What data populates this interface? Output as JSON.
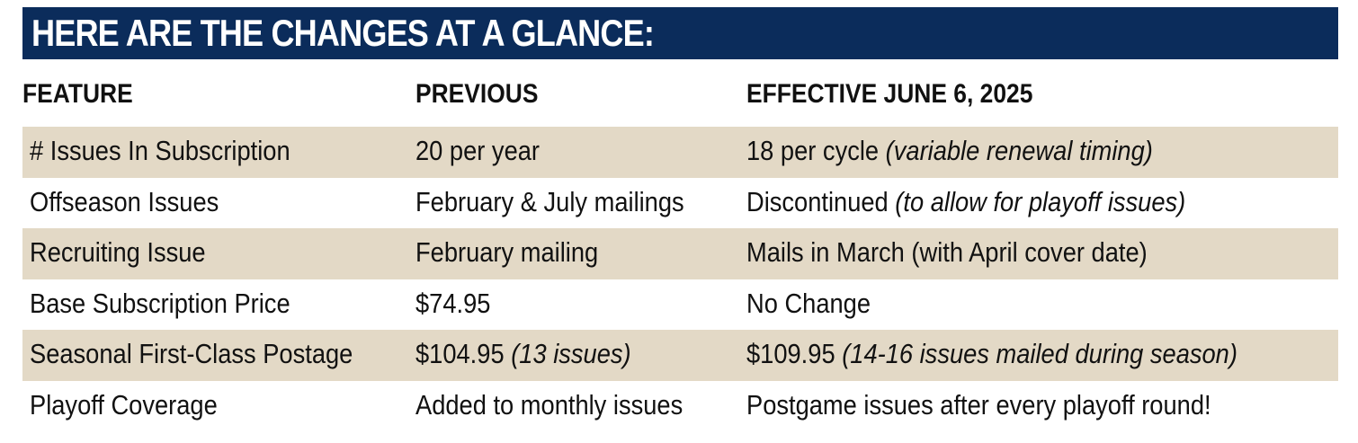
{
  "title": "HERE ARE THE CHANGES AT A GLANCE:",
  "columns": {
    "feature": "FEATURE",
    "previous": "PREVIOUS",
    "effective": "EFFECTIVE JUNE 6, 2025"
  },
  "rows": [
    {
      "feature": "# Issues In Subscription",
      "previous": "20 per year",
      "previous_note": "",
      "effective": "18 per cycle ",
      "effective_note": "(variable renewal timing)"
    },
    {
      "feature": "Offseason Issues",
      "previous": "February & July mailings",
      "previous_note": "",
      "effective": "Discontinued ",
      "effective_note": "(to allow for playoff issues)"
    },
    {
      "feature": "Recruiting Issue",
      "previous": "February mailing",
      "previous_note": "",
      "effective": "Mails in March (with April cover date)",
      "effective_note": ""
    },
    {
      "feature": "Base Subscription Price",
      "previous": "$74.95",
      "previous_note": "",
      "effective": "No Change",
      "effective_note": ""
    },
    {
      "feature": "Seasonal First-Class Postage",
      "previous": "$104.95 ",
      "previous_note": "(13 issues)",
      "effective": "$109.95 ",
      "effective_note": "(14-16 issues mailed during season)"
    },
    {
      "feature": "Playoff Coverage",
      "previous": "Added to monthly issues",
      "previous_note": "",
      "effective": "Postgame issues after every playoff round!",
      "effective_note": ""
    }
  ],
  "colors": {
    "banner": "#0b2c5b",
    "shaded_row": "#e3d9c6"
  }
}
